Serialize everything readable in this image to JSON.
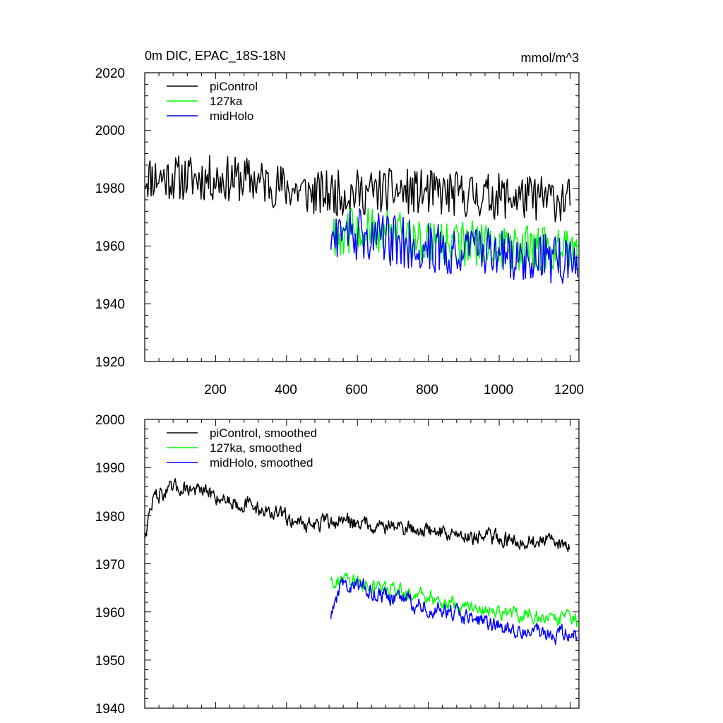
{
  "colors": {
    "piControl": "#000000",
    "127ka": "#00ff00",
    "midHolo": "#0000ff"
  },
  "chart_data": [
    {
      "type": "line",
      "title": "0m DIC, EPAC_18S-18N",
      "units": "mmol/m^3",
      "xlabel": "",
      "ylabel": "",
      "xlim": [
        0,
        1225
      ],
      "ylim": [
        1920,
        2020
      ],
      "xticks": [
        200,
        400,
        600,
        800,
        1000,
        1200
      ],
      "xtick_labels": [
        "200",
        "400",
        "600",
        "800",
        "1000",
        "1200"
      ],
      "yticks": [
        1920,
        1940,
        1960,
        1980,
        2000,
        2020
      ],
      "ytick_labels": [
        "1920",
        "1940",
        "1960",
        "1980",
        "2000",
        "2020"
      ],
      "legend_position": "top-left",
      "series": [
        {
          "name": "piControl",
          "color_key": "piControl",
          "x_range": [
            0,
            1200
          ],
          "trend": [
            [
              0,
              1984
            ],
            [
              300,
              1983
            ],
            [
              480,
              1978
            ],
            [
              700,
              1979
            ],
            [
              1200,
              1976
            ]
          ],
          "noise_amplitude": 8
        },
        {
          "name": "127ka",
          "color_key": "127ka",
          "x_range": [
            525,
            1222
          ],
          "trend": [
            [
              525,
              1964
            ],
            [
              600,
              1966
            ],
            [
              800,
              1962
            ],
            [
              1000,
              1960
            ],
            [
              1222,
              1958
            ]
          ],
          "noise_amplitude": 8
        },
        {
          "name": "midHolo",
          "color_key": "midHolo",
          "x_range": [
            525,
            1222
          ],
          "trend": [
            [
              525,
              1962
            ],
            [
              600,
              1964
            ],
            [
              800,
              1960
            ],
            [
              1000,
              1957
            ],
            [
              1222,
              1955
            ]
          ],
          "noise_amplitude": 9
        }
      ]
    },
    {
      "type": "line",
      "title": "",
      "xlabel": "",
      "ylabel": "",
      "xlim": [
        0,
        1225
      ],
      "ylim": [
        1940,
        2000
      ],
      "yticks": [
        1940,
        1950,
        1960,
        1970,
        1980,
        1990,
        2000
      ],
      "ytick_labels": [
        "1940",
        "1950",
        "1960",
        "1970",
        "1980",
        "1990",
        "2000"
      ],
      "xticks": [
        200,
        400,
        600,
        800,
        1000,
        1200
      ],
      "legend_position": "top-left",
      "series": [
        {
          "name": "piControl, smoothed",
          "color_key": "piControl",
          "x_range": [
            0,
            1200
          ],
          "trend": [
            [
              0,
              1976
            ],
            [
              25,
              1984
            ],
            [
              110,
              1986
            ],
            [
              300,
              1982
            ],
            [
              470,
              1978
            ],
            [
              560,
              1979
            ],
            [
              900,
              1976
            ],
            [
              1200,
              1974
            ]
          ],
          "noise_amplitude": 3
        },
        {
          "name": "127ka, smoothed",
          "color_key": "127ka",
          "x_range": [
            525,
            1222
          ],
          "trend": [
            [
              525,
              1967
            ],
            [
              600,
              1966
            ],
            [
              800,
              1963
            ],
            [
              1000,
              1960
            ],
            [
              1222,
              1958
            ]
          ],
          "noise_amplitude": 2.8
        },
        {
          "name": "midHolo, smoothed",
          "color_key": "midHolo",
          "x_range": [
            525,
            1222
          ],
          "trend": [
            [
              525,
              1959
            ],
            [
              560,
              1966
            ],
            [
              800,
              1961
            ],
            [
              1000,
              1957
            ],
            [
              1222,
              1955
            ]
          ],
          "noise_amplitude": 3.2
        }
      ]
    }
  ]
}
